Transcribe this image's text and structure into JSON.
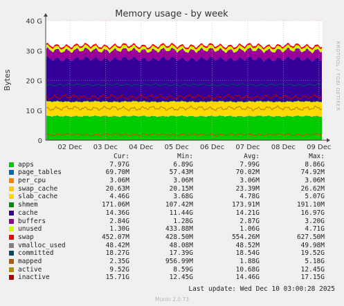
{
  "chart_data": {
    "type": "area",
    "title": "Memory usage - by week",
    "ylabel": "Bytes",
    "yticks": [
      "0",
      "10 G",
      "20 G",
      "30 G",
      "40 G"
    ],
    "ylim": [
      0,
      40
    ],
    "unit": "G",
    "categories": [
      "02 Dec",
      "03 Dec",
      "04 Dec",
      "05 Dec",
      "06 Dec",
      "07 Dec",
      "08 Dec",
      "09 Dec"
    ],
    "grid": true,
    "legend_headers": {
      "cur": "Cur:",
      "min": "Min:",
      "avg": "Avg:",
      "max": "Max:"
    },
    "series": [
      {
        "name": "apps",
        "color": "#00cc00",
        "cur": "7.97G",
        "min": "6.89G",
        "avg": "7.99G",
        "max": "8.86G"
      },
      {
        "name": "page_tables",
        "color": "#0066b3",
        "cur": "69.70M",
        "min": "57.43M",
        "avg": "70.02M",
        "max": "74.92M"
      },
      {
        "name": "per_cpu",
        "color": "#ff8000",
        "cur": "3.06M",
        "min": "3.06M",
        "avg": "3.06M",
        "max": "3.06M"
      },
      {
        "name": "swap_cache",
        "color": "#ffcc00",
        "cur": "20.63M",
        "min": "20.15M",
        "avg": "23.39M",
        "max": "26.62M"
      },
      {
        "name": "slab_cache",
        "color": "#ffd900",
        "cur": "4.46G",
        "min": "3.68G",
        "avg": "4.78G",
        "max": "5.07G"
      },
      {
        "name": "shmem",
        "color": "#008f00",
        "cur": "171.06M",
        "min": "107.42M",
        "avg": "173.91M",
        "max": "191.10M"
      },
      {
        "name": "cache",
        "color": "#330099",
        "cur": "14.36G",
        "min": "11.44G",
        "avg": "14.21G",
        "max": "16.97G"
      },
      {
        "name": "buffers",
        "color": "#990099",
        "cur": "2.84G",
        "min": "1.28G",
        "avg": "2.87G",
        "max": "3.20G"
      },
      {
        "name": "unused",
        "color": "#ccff00",
        "cur": "1.30G",
        "min": "433.88M",
        "avg": "1.06G",
        "max": "4.71G"
      },
      {
        "name": "swap",
        "color": "#ff0000",
        "cur": "452.07M",
        "min": "428.50M",
        "avg": "554.26M",
        "max": "627.50M"
      },
      {
        "name": "vmalloc_used",
        "color": "#808080",
        "cur": "48.42M",
        "min": "48.08M",
        "avg": "48.52M",
        "max": "49.98M"
      },
      {
        "name": "committed",
        "color": "#004d66",
        "cur": "18.27G",
        "min": "17.39G",
        "avg": "18.54G",
        "max": "19.52G"
      },
      {
        "name": "mapped",
        "color": "#b35a00",
        "cur": "2.35G",
        "min": "956.99M",
        "avg": "1.88G",
        "max": "5.18G"
      },
      {
        "name": "active",
        "color": "#b38f00",
        "cur": "9.52G",
        "min": "8.59G",
        "avg": "10.68G",
        "max": "12.45G"
      },
      {
        "name": "inactive",
        "color": "#b30000",
        "cur": "15.71G",
        "min": "12.45G",
        "avg": "14.46G",
        "max": "17.15G"
      }
    ],
    "last_update": "Last update: Wed Dec 10 03:00:28 2025"
  },
  "side_text": "RRDTOOL / TOBI OETIKER",
  "footer": "Munin 2.0.73"
}
